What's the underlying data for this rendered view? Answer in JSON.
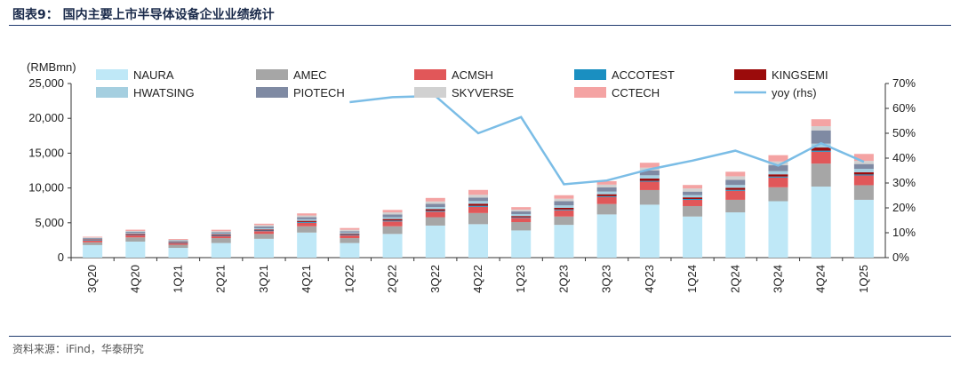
{
  "figure_title": "图表9：   国内主要上市半导体设备企业业绩统计",
  "source": "资料来源：iFind，华泰研究",
  "chart_data": {
    "type": "bar",
    "stacked": true,
    "categories": [
      "3Q20",
      "4Q20",
      "1Q21",
      "2Q21",
      "3Q21",
      "4Q21",
      "1Q22",
      "2Q22",
      "3Q22",
      "4Q22",
      "1Q23",
      "2Q23",
      "3Q23",
      "4Q23",
      "1Q24",
      "2Q24",
      "3Q24",
      "4Q24",
      "1Q25"
    ],
    "ylabel": "(RMBmn)",
    "ylim": [
      0,
      25000
    ],
    "y_ticks": [
      "0",
      "5,000",
      "10,000",
      "15,000",
      "20,000",
      "25,000"
    ],
    "y2lim": [
      0,
      70
    ],
    "y2_ticks": [
      "0%",
      "10%",
      "20%",
      "30%",
      "40%",
      "50%",
      "60%",
      "70%"
    ],
    "grid": false,
    "legend_position": "top",
    "series": [
      {
        "name": "NAURA",
        "color": "#bfe8f7",
        "values": [
          1800,
          2300,
          1400,
          2100,
          2700,
          3600,
          2100,
          3400,
          4600,
          4800,
          3900,
          4700,
          6200,
          7600,
          5900,
          6500,
          8100,
          10200,
          8300
        ]
      },
      {
        "name": "AMEC",
        "color": "#a6a6a6",
        "values": [
          400,
          600,
          450,
          700,
          700,
          900,
          700,
          1100,
          1200,
          1600,
          1200,
          1200,
          1500,
          2100,
          1500,
          1800,
          2000,
          3300,
          2100
        ]
      },
      {
        "name": "ACMSH",
        "color": "#e15759",
        "values": [
          250,
          350,
          250,
          300,
          400,
          500,
          400,
          700,
          800,
          900,
          600,
          900,
          1000,
          1200,
          900,
          1300,
          1400,
          1700,
          1400
        ]
      },
      {
        "name": "ACCOTEST",
        "color": "#1a8fc1",
        "values": [
          80,
          80,
          80,
          100,
          100,
          110,
          100,
          120,
          120,
          140,
          90,
          110,
          120,
          120,
          120,
          130,
          140,
          160,
          140
        ]
      },
      {
        "name": "KINGSEMI",
        "color": "#9b0b0b",
        "values": [
          80,
          100,
          80,
          120,
          140,
          170,
          130,
          220,
          230,
          300,
          180,
          240,
          280,
          340,
          230,
          300,
          320,
          450,
          320
        ]
      },
      {
        "name": "HWATSING",
        "color": "#a5cfe0",
        "values": [
          90,
          130,
          90,
          130,
          180,
          220,
          170,
          260,
          320,
          380,
          280,
          360,
          380,
          460,
          330,
          400,
          450,
          560,
          480
        ]
      },
      {
        "name": "PIOTECH",
        "color": "#7f8aa3",
        "values": [
          120,
          170,
          120,
          200,
          250,
          300,
          200,
          400,
          450,
          500,
          400,
          600,
          600,
          700,
          500,
          750,
          850,
          1900,
          700
        ]
      },
      {
        "name": "SKYVERSE",
        "color": "#d1d1d1",
        "values": [
          80,
          100,
          80,
          150,
          200,
          250,
          200,
          300,
          350,
          400,
          250,
          350,
          400,
          400,
          450,
          500,
          550,
          600,
          450
        ]
      },
      {
        "name": "CCTECH",
        "color": "#f4a3a3",
        "values": [
          100,
          180,
          120,
          200,
          200,
          300,
          250,
          350,
          500,
          700,
          350,
          500,
          500,
          700,
          500,
          650,
          900,
          1000,
          1000
        ]
      }
    ],
    "line_series": {
      "name": "yoy (rhs)",
      "color": "#7bbde6",
      "axis": "right",
      "values": [
        null,
        null,
        null,
        null,
        null,
        null,
        62.5,
        64.5,
        65,
        50,
        56.5,
        29.5,
        31,
        35.5,
        39,
        43,
        37,
        46,
        38.5
      ]
    }
  }
}
